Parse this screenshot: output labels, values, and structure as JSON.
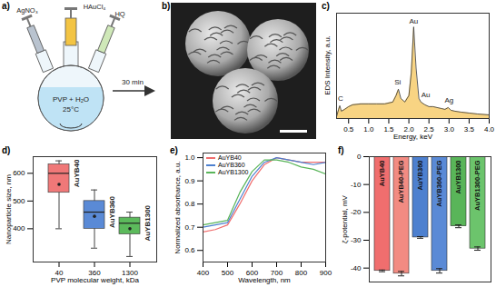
{
  "chart_data": [
    {
      "type": "area",
      "title": "c)",
      "x_label": "Energy, keV",
      "y_label": "EDS Intensity, a.u.",
      "x": [
        0.2,
        0.25,
        0.28,
        0.32,
        0.4,
        0.5,
        0.6,
        0.8,
        1.0,
        1.2,
        1.4,
        1.6,
        1.68,
        1.74,
        1.8,
        1.9,
        2.0,
        2.06,
        2.12,
        2.18,
        2.25,
        2.3,
        2.4,
        2.5,
        2.6,
        2.7,
        2.8,
        2.9,
        2.98,
        3.05,
        3.15,
        3.3,
        3.5,
        3.7,
        4.0
      ],
      "values": [
        0.02,
        0.1,
        0.14,
        0.08,
        0.1,
        0.13,
        0.15,
        0.16,
        0.16,
        0.16,
        0.16,
        0.18,
        0.25,
        0.32,
        0.22,
        0.18,
        0.25,
        0.5,
        1.0,
        0.55,
        0.22,
        0.18,
        0.15,
        0.13,
        0.13,
        0.12,
        0.11,
        0.1,
        0.12,
        0.09,
        0.08,
        0.07,
        0.06,
        0.05,
        0.04
      ],
      "color": "#f5c65a",
      "xlim": [
        0.2,
        4.0
      ],
      "xticks": [
        0.5,
        {
          "value": 1,
          "label": "1.0"
        },
        1.5,
        {
          "value": 2,
          "label": "2.0"
        },
        2.5,
        {
          "value": 3,
          "label": "3.0"
        },
        3.5,
        {
          "value": 4,
          "label": "4.0"
        }
      ],
      "ylim": [
        0,
        1.15
      ],
      "yticks": [],
      "tick_labels": "x",
      "annotations": [
        {
          "text": "C",
          "x": 0.3,
          "y": 0.22
        },
        {
          "text": "Si",
          "x": 1.72,
          "y": 0.4
        },
        {
          "text": "Au",
          "x": 2.12,
          "y": 1.06
        },
        {
          "text": "Au",
          "x": 2.42,
          "y": 0.26
        },
        {
          "text": "Ag",
          "x": 3.0,
          "y": 0.2
        }
      ]
    },
    {
      "type": "box",
      "title": "d)",
      "x_label": "PVP molecular weight, kDa",
      "y_label": "Nanoparticle size, nm",
      "categories": [
        "40",
        "360",
        "1300"
      ],
      "series": [
        {
          "name": "AuYB40",
          "color": "#f07878",
          "min": 400,
          "q1": 530,
          "median": 600,
          "q3": 632,
          "max": 645,
          "mean": 560
        },
        {
          "name": "AuYB360",
          "color": "#5a8ad6",
          "min": 330,
          "q1": 400,
          "median": 460,
          "q3": 500,
          "max": 540,
          "mean": 445
        },
        {
          "name": "AuYB1300",
          "color": "#5cba5c",
          "min": 300,
          "q1": 380,
          "median": 420,
          "q3": 440,
          "max": 460,
          "mean": 400
        }
      ],
      "ylim": [
        280,
        660
      ],
      "yticks": [
        400,
        500,
        600
      ]
    },
    {
      "type": "line",
      "title": "e)",
      "x_label": "Wavelength, nm",
      "y_label": "Normalized absorbance, a.u.",
      "x": [
        400,
        450,
        500,
        550,
        600,
        650,
        700,
        750,
        800,
        850,
        900
      ],
      "series": [
        {
          "name": "AuYB40",
          "color": "#f06e6e",
          "values": [
            0.68,
            0.69,
            0.71,
            0.8,
            0.9,
            0.97,
            1.0,
            0.99,
            0.98,
            0.98,
            0.98
          ]
        },
        {
          "name": "AuYB360",
          "color": "#4d80cf",
          "values": [
            0.7,
            0.71,
            0.72,
            0.82,
            0.92,
            0.98,
            1.0,
            0.99,
            0.98,
            0.97,
            0.98
          ]
        },
        {
          "name": "AuYB1300",
          "color": "#59b559",
          "values": [
            0.71,
            0.72,
            0.73,
            0.85,
            0.94,
            0.99,
            0.99,
            0.98,
            0.96,
            0.95,
            0.93
          ]
        }
      ],
      "xlim": [
        400,
        900
      ],
      "xticks": [
        400,
        500,
        600,
        700,
        800,
        900
      ],
      "ylim": [
        0.55,
        1.02
      ],
      "yticks": [
        0.6,
        0.7,
        0.8,
        0.9,
        {
          "value": 1,
          "label": "1.0"
        }
      ],
      "legend": "top-left"
    },
    {
      "type": "bar",
      "title": "f)",
      "y_label": "ζ-potential, mV",
      "categories": [
        "AuYB40",
        "AuYB40-PEG",
        "AuYB360",
        "AuYB360-PEG",
        "AuYB1300",
        "AuYB1300-PEG"
      ],
      "values": [
        -41,
        -42,
        -29,
        -41,
        -25,
        -33
      ],
      "errors": [
        0.3,
        0.8,
        0.3,
        0.8,
        0.5,
        0.6
      ],
      "colors": [
        "#f06e6e",
        "#f28b82",
        "#4d80cf",
        "#5a8ad6",
        "#59b559",
        "#6cc46c"
      ],
      "ylim": [
        -45,
        0
      ],
      "yticks": [
        0,
        -10,
        -20,
        -30,
        -40
      ],
      "tick_labels": "y"
    }
  ],
  "diagram": {
    "title": "a)",
    "reagents": [
      "AgNO₃",
      "HAuCl₄",
      "HQ"
    ],
    "flask_contents": "PVP + H₂O",
    "temperature": "25°C",
    "arrow_label": "30 min"
  },
  "image": {
    "title": "b)"
  }
}
